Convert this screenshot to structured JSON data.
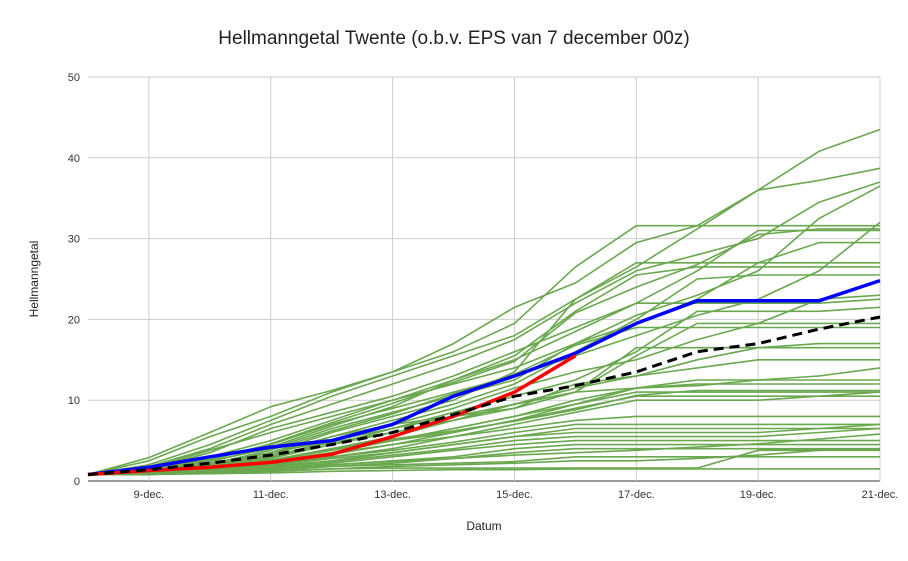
{
  "chart_data": {
    "type": "line",
    "title": "Hellmanngetal Twente (o.b.v. EPS van 7 december 00z)",
    "xlabel": "Datum",
    "ylabel": "Hellmanngetal",
    "x": [
      8,
      9,
      10,
      11,
      12,
      13,
      14,
      15,
      16,
      17,
      18,
      19,
      20,
      21
    ],
    "xticks": [
      {
        "x": 9,
        "label": "9-dec."
      },
      {
        "x": 11,
        "label": "11-dec."
      },
      {
        "x": 13,
        "label": "13-dec."
      },
      {
        "x": 15,
        "label": "15-dec."
      },
      {
        "x": 17,
        "label": "17-dec."
      },
      {
        "x": 19,
        "label": "19-dec."
      },
      {
        "x": 21,
        "label": "21-dec."
      }
    ],
    "xlim": [
      8,
      21
    ],
    "ylim": [
      0,
      50
    ],
    "yticks": [
      0,
      10,
      20,
      30,
      40,
      50
    ],
    "grid": true,
    "colors": {
      "members": "#6aa84f",
      "blue": "#0000ff",
      "red": "#ff0000",
      "dashed": "#000000"
    },
    "ensemble_members": [
      [
        0.8,
        2.9,
        6.0,
        9.2,
        11.2,
        13.5,
        17.0,
        21.5,
        24.5,
        29.5,
        31.6,
        36.0,
        40.8,
        43.5
      ],
      [
        0.8,
        2.5,
        5.5,
        8.0,
        11.0,
        13.5,
        16.0,
        19.5,
        26.5,
        31.6,
        31.6,
        31.6,
        31.6,
        31.6
      ],
      [
        0.8,
        2.0,
        4.5,
        7.5,
        10.5,
        13.0,
        15.5,
        18.0,
        22.5,
        26.5,
        31.2,
        36.0,
        37.2,
        38.7
      ],
      [
        0.8,
        1.8,
        4.0,
        7.0,
        9.5,
        12.0,
        14.5,
        17.5,
        22.0,
        26.0,
        28.0,
        30.0,
        34.5,
        37.0
      ],
      [
        0.8,
        1.5,
        3.5,
        6.5,
        8.5,
        10.5,
        13.0,
        16.0,
        19.0,
        22.0,
        26.0,
        31.0,
        31.0,
        31.0
      ],
      [
        0.8,
        1.6,
        3.8,
        6.0,
        8.0,
        10.0,
        12.5,
        15.5,
        21.0,
        25.5,
        26.5,
        26.5,
        26.5,
        26.5
      ],
      [
        0.8,
        1.4,
        3.0,
        5.0,
        7.5,
        10.0,
        12.0,
        14.0,
        17.0,
        20.5,
        23.0,
        26.0,
        32.5,
        36.5
      ],
      [
        0.8,
        1.2,
        2.8,
        4.5,
        7.0,
        9.0,
        11.0,
        13.0,
        15.5,
        18.0,
        20.5,
        22.5,
        26.0,
        32.0
      ],
      [
        0.8,
        1.3,
        2.5,
        4.0,
        6.5,
        8.5,
        10.5,
        12.5,
        17.0,
        19.5,
        22.5,
        27.0,
        29.5,
        29.5
      ],
      [
        0.8,
        1.1,
        2.2,
        3.5,
        6.0,
        8.0,
        10.0,
        13.5,
        22.5,
        27.0,
        27.0,
        27.0,
        27.0,
        27.0
      ],
      [
        0.8,
        1.0,
        2.0,
        3.2,
        5.5,
        7.5,
        9.5,
        12.0,
        16.0,
        20.0,
        25.0,
        25.5,
        25.5,
        25.5
      ],
      [
        0.8,
        1.2,
        2.4,
        4.2,
        6.8,
        9.2,
        12.5,
        15.0,
        18.5,
        22.0,
        22.0,
        22.0,
        22.0,
        22.5
      ],
      [
        0.8,
        1.0,
        1.8,
        3.0,
        5.0,
        7.0,
        9.0,
        11.5,
        13.5,
        15.0,
        17.5,
        19.5,
        22.5,
        23.0
      ],
      [
        0.8,
        0.9,
        1.6,
        2.8,
        4.5,
        6.5,
        8.5,
        10.5,
        12.5,
        16.0,
        21.0,
        21.0,
        21.0,
        21.5
      ],
      [
        0.8,
        1.1,
        2.0,
        3.5,
        5.5,
        7.0,
        8.0,
        9.0,
        11.0,
        15.5,
        19.5,
        19.5,
        19.5,
        19.5
      ],
      [
        0.8,
        1.0,
        1.9,
        3.0,
        4.8,
        6.0,
        7.5,
        9.0,
        12.0,
        13.0,
        15.0,
        16.5,
        17.0,
        17.0
      ],
      [
        0.8,
        1.2,
        2.0,
        3.5,
        5.0,
        6.5,
        8.0,
        9.5,
        11.0,
        16.5,
        16.5,
        16.5,
        16.5,
        16.5
      ],
      [
        0.8,
        1.0,
        1.7,
        2.5,
        4.0,
        5.5,
        7.5,
        9.5,
        11.5,
        13.0,
        14.0,
        15.0,
        15.0,
        15.0
      ],
      [
        0.8,
        0.9,
        1.5,
        2.5,
        4.0,
        5.0,
        6.5,
        8.0,
        10.0,
        11.5,
        11.8,
        12.5,
        13.0,
        14.0
      ],
      [
        0.8,
        1.0,
        1.6,
        2.6,
        3.8,
        5.0,
        6.0,
        7.5,
        9.5,
        11.5,
        12.5,
        12.5,
        12.5,
        12.5
      ],
      [
        0.8,
        1.1,
        1.8,
        3.0,
        4.5,
        6.0,
        7.5,
        9.5,
        11.0,
        11.5,
        12.0,
        12.0,
        12.0,
        12.0
      ],
      [
        0.8,
        0.9,
        1.5,
        2.2,
        3.5,
        5.0,
        6.5,
        8.0,
        9.5,
        11.0,
        11.0,
        11.0,
        11.0,
        11.0
      ],
      [
        0.8,
        1.0,
        1.7,
        2.5,
        3.5,
        4.5,
        6.0,
        7.5,
        9.0,
        10.5,
        10.5,
        10.5,
        10.5,
        10.5
      ],
      [
        0.8,
        0.9,
        1.3,
        2.0,
        3.0,
        4.0,
        5.5,
        7.0,
        8.5,
        10.0,
        10.0,
        10.0,
        10.5,
        11.0
      ],
      [
        0.8,
        1.0,
        1.5,
        2.3,
        3.3,
        4.5,
        5.5,
        6.5,
        7.5,
        8.0,
        8.0,
        8.0,
        8.0,
        8.0
      ],
      [
        0.8,
        0.9,
        1.4,
        2.0,
        3.0,
        3.8,
        4.8,
        6.0,
        7.0,
        7.0,
        7.0,
        7.0,
        7.0,
        7.0
      ],
      [
        0.8,
        0.9,
        1.2,
        1.8,
        2.5,
        3.5,
        4.5,
        5.5,
        6.5,
        6.5,
        6.5,
        6.5,
        6.5,
        6.5
      ],
      [
        0.8,
        0.9,
        1.3,
        1.9,
        2.8,
        3.5,
        4.5,
        5.5,
        6.0,
        6.0,
        6.0,
        6.0,
        6.5,
        7.0
      ],
      [
        0.8,
        0.9,
        1.2,
        1.7,
        2.4,
        3.2,
        4.0,
        5.0,
        5.5,
        5.5,
        5.5,
        5.5,
        6.0,
        6.5
      ],
      [
        0.8,
        0.8,
        1.1,
        1.5,
        2.2,
        3.0,
        3.8,
        4.5,
        5.0,
        5.0,
        5.0,
        5.0,
        5.0,
        5.0
      ],
      [
        0.8,
        0.9,
        1.2,
        1.6,
        2.0,
        2.5,
        3.0,
        4.0,
        4.5,
        4.5,
        4.5,
        4.5,
        4.5,
        4.5
      ],
      [
        0.8,
        0.8,
        1.0,
        1.4,
        1.8,
        2.2,
        2.8,
        3.5,
        4.0,
        4.0,
        4.0,
        4.0,
        4.0,
        4.0
      ],
      [
        0.8,
        0.8,
        1.0,
        1.3,
        1.8,
        2.0,
        2.2,
        2.4,
        3.0,
        3.0,
        3.0,
        3.0,
        3.0,
        3.0
      ],
      [
        0.8,
        0.8,
        1.0,
        1.2,
        1.5,
        1.8,
        2.0,
        2.2,
        2.5,
        2.5,
        2.8,
        3.2,
        3.8,
        4.0
      ],
      [
        0.8,
        0.8,
        1.0,
        1.2,
        1.5,
        1.6,
        1.6,
        1.6,
        1.6,
        1.6,
        1.6,
        3.8,
        3.8,
        3.8
      ],
      [
        0.8,
        0.8,
        0.9,
        1.0,
        1.2,
        1.3,
        1.4,
        1.4,
        1.5,
        1.5,
        1.5,
        1.5,
        1.5,
        1.5
      ],
      [
        0.8,
        0.9,
        1.1,
        1.5,
        2.0,
        2.4,
        2.8,
        3.2,
        3.5,
        3.8,
        4.2,
        4.6,
        5.2,
        5.8
      ],
      [
        0.8,
        1.0,
        1.6,
        2.6,
        4.0,
        5.2,
        6.2,
        7.4,
        8.8,
        10.6,
        11.2,
        11.2,
        11.2,
        11.2
      ],
      [
        0.8,
        1.1,
        2.1,
        3.8,
        6.2,
        8.3,
        10.8,
        13.2,
        16.8,
        19.0,
        19.0,
        19.0,
        19.0,
        19.0
      ],
      [
        0.8,
        1.2,
        2.6,
        4.6,
        7.2,
        9.6,
        12.2,
        14.8,
        20.8,
        24.0,
        26.8,
        30.5,
        31.2,
        31.2
      ]
    ],
    "blue": [
      0.8,
      1.7,
      3.0,
      4.2,
      5.0,
      7.0,
      10.5,
      13.0,
      15.8,
      19.5,
      22.3,
      22.3,
      22.3,
      24.8
    ],
    "red": [
      0.8,
      1.3,
      1.7,
      2.3,
      3.3,
      5.5,
      8.0,
      11.0,
      15.5
    ],
    "dashed": [
      0.8,
      1.4,
      2.2,
      3.2,
      4.5,
      6.0,
      8.2,
      10.5,
      11.8,
      13.5,
      16.0,
      17.0,
      18.8,
      20.3
    ]
  }
}
